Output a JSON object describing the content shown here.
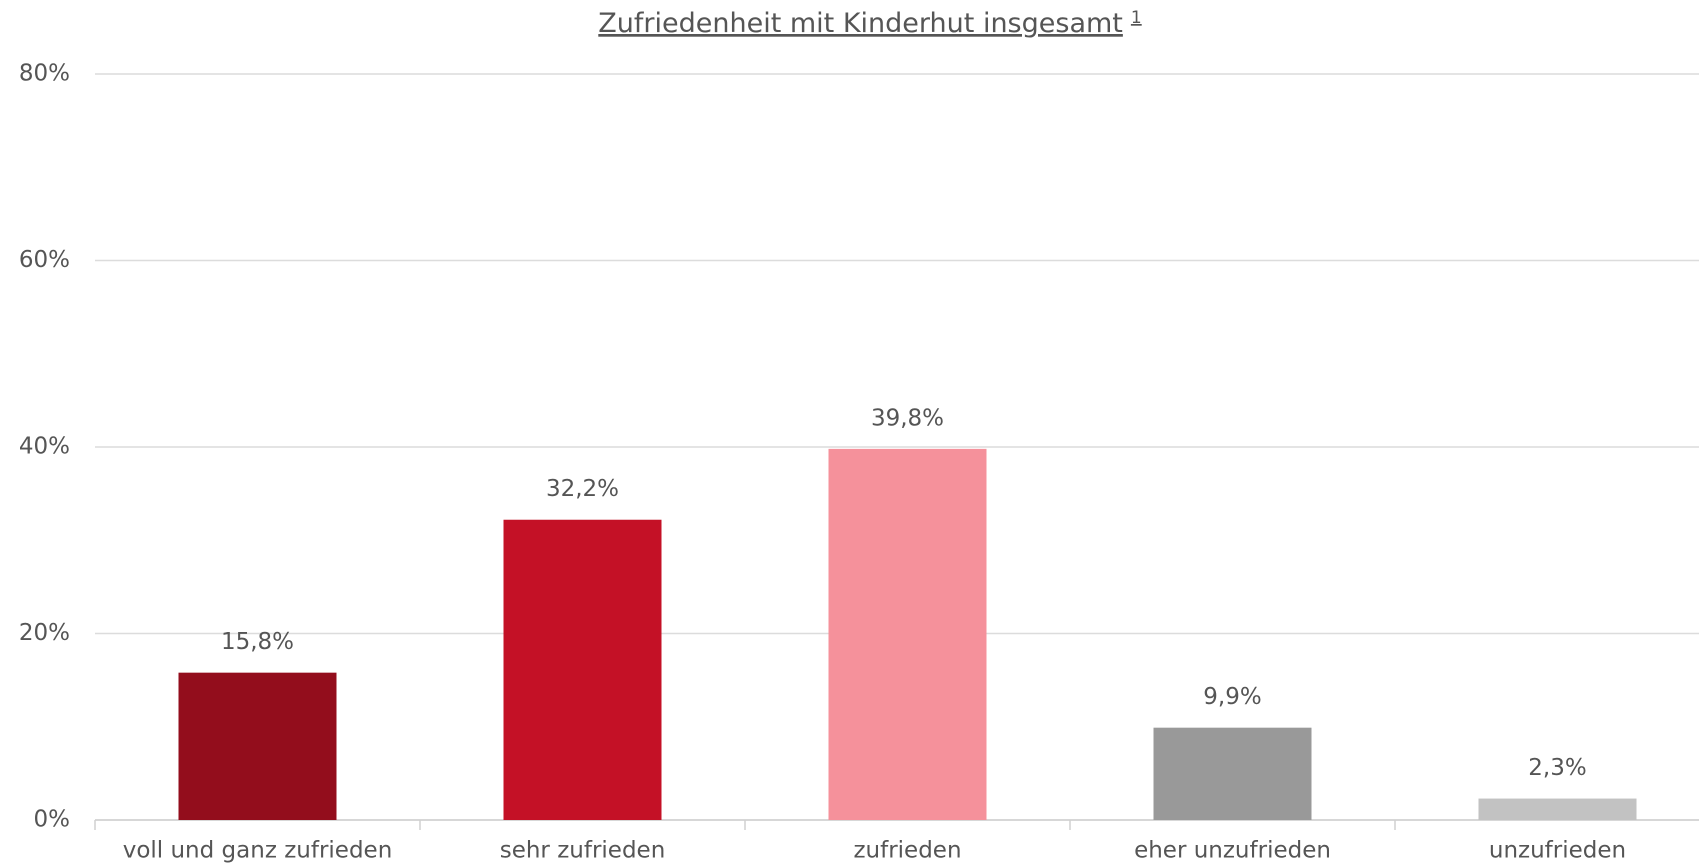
{
  "chart_data": {
    "type": "bar",
    "title": "Zufriedenheit mit Kinderhut insgesamt",
    "title_note": "1",
    "categories": [
      "voll und ganz zufrieden",
      "sehr zufrieden",
      "zufrieden",
      "eher unzufrieden",
      "unzufrieden"
    ],
    "values": [
      15.8,
      32.2,
      39.8,
      9.9,
      2.3
    ],
    "value_labels": [
      "15,8%",
      "32,2%",
      "39,8%",
      "9,9%",
      "2,3%"
    ],
    "colors": [
      "#930d1c",
      "#c41126",
      "#f5919b",
      "#999999",
      "#c2c2c2"
    ],
    "ylim": [
      0,
      80
    ],
    "yticks": [
      {
        "value": 0,
        "label": "0%"
      },
      {
        "value": 20,
        "label": "20%"
      },
      {
        "value": 40,
        "label": "40%"
      },
      {
        "value": 60,
        "label": "60%"
      },
      {
        "value": 80,
        "label": "80%"
      }
    ],
    "grid": true
  }
}
